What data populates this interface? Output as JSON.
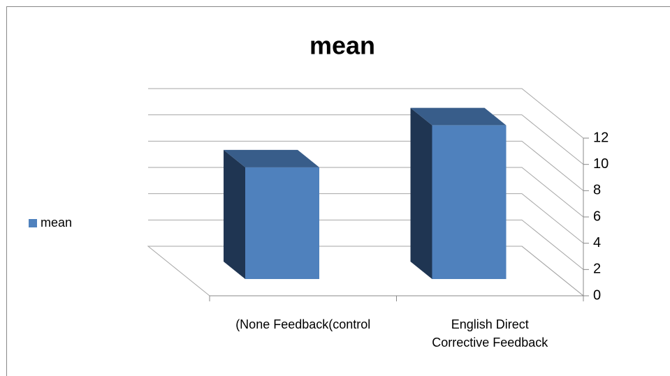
{
  "chart_data": {
    "type": "bar3d",
    "title": "mean",
    "categories": [
      "(None Feedback(control",
      "English Direct Corrective Feedback"
    ],
    "series": [
      {
        "name": "mean",
        "color": "#4f81bd",
        "values": [
          8.5,
          11.7
        ]
      }
    ],
    "ylim": [
      0,
      12
    ],
    "yticks": [
      0,
      2,
      4,
      6,
      8,
      10,
      12
    ],
    "grid": true,
    "legend": "left"
  }
}
